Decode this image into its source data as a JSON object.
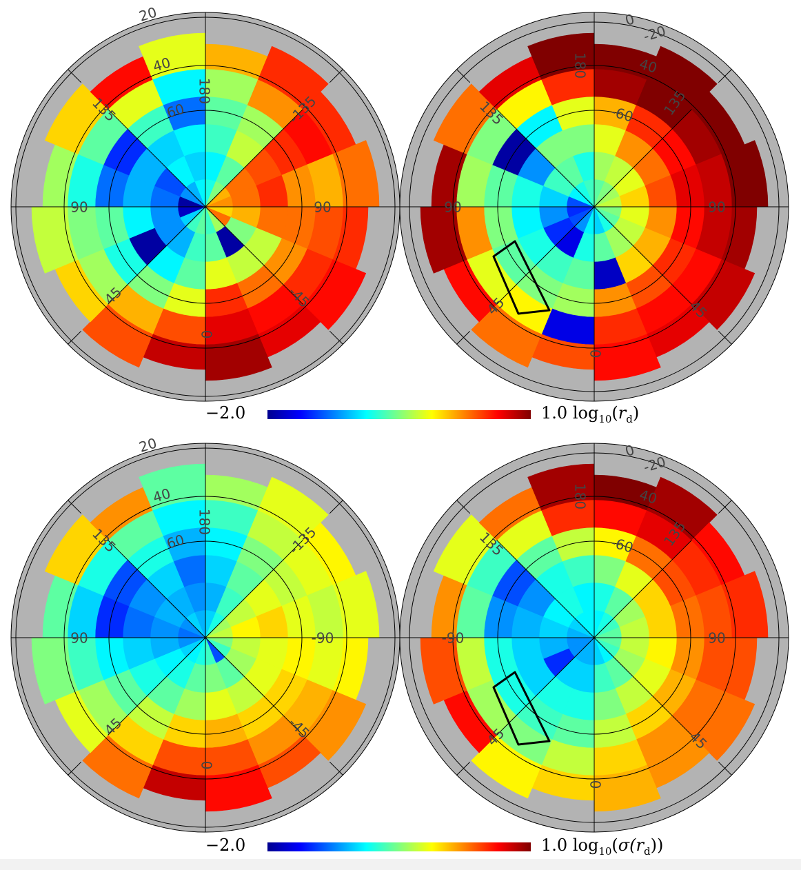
{
  "chart_data": [
    {
      "type": "heatmap",
      "panel": "top-left",
      "quantity": "log10(r_d)",
      "azimuth_bin_deg": 22.5,
      "azimuth_start_deg": 0,
      "value_range": [
        -2.0,
        1.0
      ],
      "tick_labels": [
        "20",
        "40",
        "60",
        "180",
        "135",
        "-135",
        "90",
        "90",
        "45",
        "-45",
        "0"
      ],
      "values": [
        [
          -0.6,
          -0.7,
          -0.6,
          -0.2,
          0.4,
          0.8
        ],
        [
          -0.7,
          -1.1,
          -0.9,
          -0.5,
          0.1,
          0.4
        ],
        [
          -1.0,
          -1.2,
          -1.9,
          -0.8,
          -0.4,
          0.0
        ],
        [
          -1.8,
          -1.2,
          -0.9,
          -0.6,
          -0.5,
          -0.3
        ],
        [
          -1.9,
          -1.3,
          -1.1,
          -1.3,
          -0.8,
          -0.4
        ],
        [
          -1.2,
          -1.4,
          -1.1,
          -1.5,
          -0.6,
          0.0
        ],
        [
          -1.1,
          -0.9,
          -1.0,
          -0.7,
          -0.2,
          0.6
        ],
        [
          -0.9,
          -1.0,
          -0.9,
          -1.3,
          -0.9,
          -0.2
        ],
        [
          -0.8,
          -0.9,
          -0.7,
          -0.6,
          -0.4,
          0.1
        ],
        [
          -0.5,
          -0.6,
          -0.3,
          -0.4,
          0.2,
          0.5
        ],
        [
          0.1,
          0.3,
          0.4,
          0.5,
          0.6,
          0.5
        ],
        [
          0.2,
          0.3,
          0.5,
          0.2,
          0.1,
          0.3
        ],
        [
          0.0,
          0.1,
          0.3,
          0.3,
          0.4,
          0.5
        ],
        [
          0.3,
          -0.5,
          -0.3,
          0.2,
          0.5,
          0.6
        ],
        [
          -0.4,
          -1.9,
          -0.3,
          0.3,
          0.6,
          0.7
        ],
        [
          -0.7,
          -0.6,
          -0.2,
          0.5,
          0.7,
          0.9
        ]
      ]
    },
    {
      "type": "heatmap",
      "panel": "top-right",
      "quantity": "log10(r_d)",
      "azimuth_bin_deg": 22.5,
      "azimuth_start_deg": 0,
      "value_range": [
        -2.0,
        1.0
      ],
      "tick_labels": [
        "0",
        "-20",
        "40",
        "-60",
        "180",
        "135",
        "135",
        "90",
        "90",
        "45",
        "45",
        "0"
      ],
      "values": [
        [
          -0.9,
          -0.8,
          -0.6,
          -0.4,
          -1.7,
          0.4
        ],
        [
          -1.2,
          -1.7,
          -0.7,
          -0.5,
          -0.1,
          0.3
        ],
        [
          -1.4,
          -1.5,
          -0.8,
          -0.6,
          -0.2,
          0.6
        ],
        [
          -1.5,
          -1.2,
          -0.9,
          -0.5,
          0.2,
          0.9
        ],
        [
          -1.4,
          -1.0,
          -0.8,
          -0.6,
          -0.4,
          0.9
        ],
        [
          -0.9,
          -0.7,
          -1.2,
          -1.9,
          -0.5,
          0.3
        ],
        [
          -0.8,
          -0.6,
          -0.5,
          -0.9,
          -0.1,
          0.7
        ],
        [
          -0.7,
          -0.8,
          -0.5,
          -0.2,
          0.5,
          1.0
        ],
        [
          -0.6,
          -0.4,
          -0.2,
          0.1,
          0.9,
          1.0
        ],
        [
          -0.5,
          -0.3,
          0.2,
          0.5,
          1.0,
          1.0
        ],
        [
          -0.4,
          -0.2,
          0.3,
          0.6,
          0.9,
          1.0
        ],
        [
          -0.3,
          0.0,
          0.4,
          0.7,
          0.8,
          1.0
        ],
        [
          -0.5,
          -0.2,
          0.2,
          0.6,
          0.8,
          0.9
        ],
        [
          -0.6,
          -0.3,
          0.1,
          0.5,
          0.6,
          0.8
        ],
        [
          -0.8,
          -0.4,
          0.0,
          0.4,
          0.6,
          0.7
        ],
        [
          -1.0,
          -0.6,
          -1.8,
          0.2,
          0.5,
          0.6
        ]
      ]
    },
    {
      "type": "heatmap",
      "panel": "bottom-left",
      "quantity": "log10(sigma(r_d))",
      "azimuth_bin_deg": 22.5,
      "azimuth_start_deg": 0,
      "value_range": [
        -2.0,
        1.0
      ],
      "tick_labels": [
        "20",
        "40",
        "60",
        "180",
        "135",
        "-135",
        "90",
        "-90",
        "45",
        "-45",
        "0"
      ],
      "values": [
        [
          -0.8,
          -0.6,
          -0.4,
          0.0,
          0.4,
          0.8
        ],
        [
          -0.9,
          -0.8,
          -0.6,
          -0.3,
          0.0,
          0.3
        ],
        [
          -1.0,
          -0.9,
          -0.8,
          -0.6,
          -0.4,
          -0.2
        ],
        [
          -1.2,
          -1.1,
          -1.0,
          -0.9,
          -0.7,
          -0.5
        ],
        [
          -1.3,
          -1.2,
          -1.3,
          -1.5,
          -1.0,
          -0.6
        ],
        [
          -1.2,
          -1.1,
          -1.2,
          -1.4,
          -0.8,
          0.0
        ],
        [
          -1.0,
          -1.1,
          -1.0,
          -0.8,
          -0.6,
          0.2
        ],
        [
          -1.1,
          -1.2,
          -1.3,
          -1.1,
          -0.9,
          -0.6
        ],
        [
          -1.0,
          -1.1,
          -1.0,
          -0.9,
          -0.7,
          -0.4
        ],
        [
          -0.8,
          -0.7,
          -0.6,
          -0.5,
          -0.3,
          -0.2
        ],
        [
          -0.4,
          -0.3,
          -0.2,
          -0.3,
          -0.2,
          -0.1
        ],
        [
          -0.3,
          -0.1,
          0.0,
          -0.2,
          -0.3,
          -0.2
        ],
        [
          -0.5,
          -0.3,
          -0.2,
          -0.1,
          -0.2,
          -0.1
        ],
        [
          -0.7,
          -0.4,
          -0.2,
          0.0,
          0.1,
          0.2
        ],
        [
          -1.4,
          -0.6,
          -0.3,
          0.0,
          0.2,
          0.4
        ],
        [
          -0.7,
          -0.5,
          -0.2,
          0.1,
          0.4,
          0.6
        ]
      ]
    },
    {
      "type": "heatmap",
      "panel": "bottom-right",
      "quantity": "log10(sigma(r_d))",
      "azimuth_bin_deg": 22.5,
      "azimuth_start_deg": 0,
      "value_range": [
        -2.0,
        1.0
      ],
      "tick_labels": [
        "0",
        "-20",
        "40",
        "-60",
        "180",
        "135",
        "135",
        "-90",
        "90",
        "45",
        "45",
        "0"
      ],
      "values": [
        [
          -1.1,
          -1.0,
          -0.8,
          -0.6,
          -0.3,
          0.0
        ],
        [
          -1.1,
          -1.0,
          -0.8,
          -0.7,
          -0.5,
          -0.1
        ],
        [
          -1.2,
          -1.5,
          -1.0,
          -0.8,
          -0.4,
          0.6
        ],
        [
          -1.2,
          -1.1,
          -1.0,
          -0.8,
          -0.3,
          0.4
        ],
        [
          -1.1,
          -1.0,
          -1.1,
          -1.2,
          -0.6,
          0.2
        ],
        [
          -1.0,
          -0.9,
          -1.2,
          -1.4,
          -0.7,
          -0.2
        ],
        [
          -0.9,
          -0.8,
          -0.8,
          -0.6,
          -0.2,
          0.3
        ],
        [
          -0.9,
          -0.9,
          -0.7,
          -0.3,
          0.5,
          0.9
        ],
        [
          -0.9,
          -0.8,
          -0.5,
          -0.1,
          0.6,
          1.0
        ],
        [
          -0.8,
          -0.6,
          -0.2,
          0.3,
          0.7,
          0.9
        ],
        [
          -0.7,
          -0.4,
          0.0,
          0.4,
          0.5,
          0.6
        ],
        [
          -0.6,
          -0.3,
          0.0,
          0.3,
          0.4,
          0.5
        ],
        [
          -0.6,
          -0.3,
          -0.1,
          0.2,
          0.4,
          0.4
        ],
        [
          -0.7,
          -0.4,
          -0.2,
          0.1,
          0.3,
          0.3
        ],
        [
          -0.9,
          -0.6,
          -0.3,
          0.0,
          0.2,
          0.2
        ],
        [
          -1.0,
          -0.7,
          -0.5,
          -0.3,
          0.0,
          0.1
        ]
      ]
    }
  ],
  "colorbars": [
    {
      "min": "−2.0",
      "max": "1.0",
      "func": "log",
      "func_sub": "10",
      "open": "(",
      "inner_func": "",
      "var": "r",
      "var_sub": "d",
      "close": ")"
    },
    {
      "min": "−2.0",
      "max": "1.0",
      "func": "log",
      "func_sub": "10",
      "open": "(",
      "inner_func": "σ(",
      "var": "r",
      "var_sub": "d",
      "close": "))"
    }
  ],
  "colormap": "jet",
  "colors": {
    "background_disk": "#b3b3b3",
    "grid": "#000000"
  }
}
